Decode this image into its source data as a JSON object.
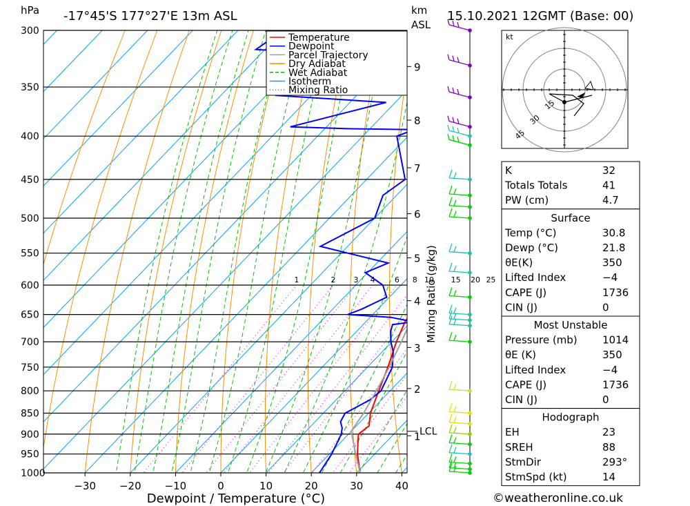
{
  "header": {
    "hpa_unit": "hPa",
    "location": "-17°45'S  177°27'E  13m  ASL",
    "km_unit": "km",
    "asl_unit": "ASL",
    "datetime": "15.10.2021  12GMT  (Base: 00)"
  },
  "axes": {
    "xlabel": "Dewpoint / Temperature (°C)",
    "x_ticks": [
      -30,
      -20,
      -10,
      0,
      10,
      20,
      30,
      40
    ],
    "x_tick_labels": [
      "−30",
      "−20",
      "−10",
      "0",
      "10",
      "20",
      "30",
      "40"
    ],
    "xlim": [
      -40,
      40
    ],
    "p_ticks": [
      300,
      350,
      400,
      450,
      500,
      550,
      600,
      650,
      700,
      750,
      800,
      850,
      900,
      950,
      1000
    ],
    "ylim_hpa": [
      300,
      1000
    ],
    "km_ticks": [
      {
        "label": "9",
        "p": 331
      },
      {
        "label": "8",
        "p": 383
      },
      {
        "label": "7",
        "p": 436
      },
      {
        "label": "6",
        "p": 494
      },
      {
        "label": "5",
        "p": 557
      },
      {
        "label": "4",
        "p": 626
      },
      {
        "label": "3",
        "p": 711
      },
      {
        "label": "2",
        "p": 795
      },
      {
        "label": "1",
        "p": 904
      }
    ],
    "lcl_label": "LCL",
    "lcl_p": 893,
    "mixing_ratio_axis_label": "Mixing Ratio (g/kg)"
  },
  "legend": [
    {
      "name": "Temperature",
      "color": "#ff0000",
      "style": "solid"
    },
    {
      "name": "Dewpoint",
      "color": "#0000ff",
      "style": "solid"
    },
    {
      "name": "Parcel Trajectory",
      "color": "#a0a0a0",
      "style": "solid"
    },
    {
      "name": "Dry Adiabat",
      "color": "#ff8c00",
      "style": "solid"
    },
    {
      "name": "Wet Adiabat",
      "color": "#00c000",
      "style": "dashed"
    },
    {
      "name": "Isotherm",
      "color": "#00a0ff",
      "style": "solid"
    },
    {
      "name": "Mixing Ratio",
      "color": "#ff00ff",
      "style": "dotted"
    }
  ],
  "chart_data": {
    "type": "line",
    "subtype": "skew-T log-p sounding",
    "x_unit": "°C",
    "y_unit": "hPa",
    "ylog": true,
    "series": [
      {
        "name": "Temperature",
        "color": "#ff0000",
        "points": [
          [
            1000,
            30.8
          ],
          [
            975,
            28.5
          ],
          [
            950,
            26.2
          ],
          [
            925,
            24.2
          ],
          [
            900,
            22.2
          ],
          [
            880,
            22.8
          ],
          [
            850,
            20.4
          ],
          [
            800,
            17.5
          ],
          [
            750,
            14.5
          ],
          [
            700,
            11.0
          ],
          [
            660,
            8.5
          ],
          [
            650,
            8.6
          ],
          [
            600,
            5.0
          ],
          [
            550,
            0.5
          ],
          [
            500,
            -5.0
          ],
          [
            450,
            -10.5
          ],
          [
            400,
            -17.2
          ],
          [
            390,
            -17.0
          ],
          [
            350,
            -26.0
          ],
          [
            330,
            -30.0
          ],
          [
            300,
            -37.0
          ]
        ]
      },
      {
        "name": "Dewpoint",
        "color": "#0000ff",
        "points": [
          [
            1000,
            21.8
          ],
          [
            950,
            20.5
          ],
          [
            900,
            18.4
          ],
          [
            885,
            17.3
          ],
          [
            870,
            15.6
          ],
          [
            850,
            14.8
          ],
          [
            820,
            17.5
          ],
          [
            800,
            18.0
          ],
          [
            750,
            15.5
          ],
          [
            720,
            12.5
          ],
          [
            700,
            9.8
          ],
          [
            680,
            7.5
          ],
          [
            668,
            6.5
          ],
          [
            663,
            10.5
          ],
          [
            655,
            4.6
          ],
          [
            650,
            -5.5
          ],
          [
            640,
            -3.5
          ],
          [
            620,
            -0.6
          ],
          [
            600,
            -4.0
          ],
          [
            580,
            -10.5
          ],
          [
            565,
            -7.5
          ],
          [
            540,
            -26.0
          ],
          [
            500,
            -20.0
          ],
          [
            470,
            -23.0
          ],
          [
            450,
            -21.5
          ],
          [
            400,
            -32.5
          ],
          [
            393,
            -30.0
          ],
          [
            392,
            -45.0
          ],
          [
            390,
            -58.0
          ],
          [
            365,
            -42.0
          ],
          [
            358,
            -68.0
          ],
          [
            330,
            -52.0
          ],
          [
            322,
            -54.0
          ],
          [
            316,
            -82.0
          ],
          [
            300,
            -80.0
          ]
        ]
      },
      {
        "name": "Parcel Trajectory",
        "color": "#a0a0a0",
        "points": [
          [
            1000,
            30.8
          ],
          [
            950,
            25.8
          ],
          [
            893,
            20.0
          ],
          [
            850,
            18.9
          ],
          [
            800,
            17.0
          ],
          [
            750,
            14.8
          ],
          [
            700,
            12.1
          ],
          [
            650,
            9.1
          ],
          [
            600,
            5.8
          ],
          [
            550,
            1.8
          ],
          [
            500,
            -2.8
          ],
          [
            450,
            -8.2
          ],
          [
            400,
            -14.8
          ],
          [
            370,
            -19.5
          ]
        ]
      }
    ],
    "mixing_ratio_lines_gkg": [
      1,
      2,
      3,
      4,
      6,
      8,
      10,
      15,
      20,
      25
    ]
  },
  "winds": {
    "levels": [
      {
        "p": 1000,
        "color": "#00d000"
      },
      {
        "p": 990,
        "color": "#00d000"
      },
      {
        "p": 975,
        "color": "#00d000"
      },
      {
        "p": 950,
        "color": "#20c0c0"
      },
      {
        "p": 925,
        "color": "#00d000"
      },
      {
        "p": 900,
        "color": "#90d000"
      },
      {
        "p": 875,
        "color": "#e0e000"
      },
      {
        "p": 850,
        "color": "#e0e000"
      },
      {
        "p": 800,
        "color": "#c0e040"
      },
      {
        "p": 700,
        "color": "#00d000"
      },
      {
        "p": 670,
        "color": "#20c0a0"
      },
      {
        "p": 660,
        "color": "#20c0a0"
      },
      {
        "p": 650,
        "color": "#20c0a0"
      },
      {
        "p": 620,
        "color": "#00d000"
      },
      {
        "p": 580,
        "color": "#20c0a0"
      },
      {
        "p": 550,
        "color": "#20c0a0"
      },
      {
        "p": 500,
        "color": "#00d000"
      },
      {
        "p": 485,
        "color": "#00d000"
      },
      {
        "p": 470,
        "color": "#00d000"
      },
      {
        "p": 450,
        "color": "#20c0a0"
      },
      {
        "p": 410,
        "color": "#00d000"
      },
      {
        "p": 400,
        "color": "#20c0c0"
      },
      {
        "p": 390,
        "color": "#8000c0"
      },
      {
        "p": 360,
        "color": "#8000c0"
      },
      {
        "p": 330,
        "color": "#8000c0"
      },
      {
        "p": 300,
        "color": "#8000c0"
      }
    ]
  },
  "hodograph": {
    "unit": "kt",
    "ring_labels": [
      "15",
      "30",
      "45"
    ]
  },
  "indices": {
    "top": [
      {
        "label": "K",
        "value": "32"
      },
      {
        "label": "Totals Totals",
        "value": "41"
      },
      {
        "label": "PW (cm)",
        "value": "4.7"
      }
    ],
    "surface": {
      "title": "Surface",
      "rows": [
        {
          "label": "Temp (°C)",
          "value": "30.8"
        },
        {
          "label": "Dewp (°C)",
          "value": "21.8"
        },
        {
          "label": "θE(K)",
          "value": "350"
        },
        {
          "label": "Lifted Index",
          "value": "−4"
        },
        {
          "label": "CAPE (J)",
          "value": "1736"
        },
        {
          "label": "CIN (J)",
          "value": "0"
        }
      ]
    },
    "most_unstable": {
      "title": "Most Unstable",
      "rows": [
        {
          "label": "Pressure (mb)",
          "value": "1014"
        },
        {
          "label": "θE (K)",
          "value": "350"
        },
        {
          "label": "Lifted Index",
          "value": "−4"
        },
        {
          "label": "CAPE (J)",
          "value": "1736"
        },
        {
          "label": "CIN (J)",
          "value": "0"
        }
      ]
    },
    "hodograph_block": {
      "title": "Hodograph",
      "rows": [
        {
          "label": "EH",
          "value": "23"
        },
        {
          "label": "SREH",
          "value": "88"
        },
        {
          "label": "StmDir",
          "value": "293°"
        },
        {
          "label": "StmSpd (kt)",
          "value": "14"
        }
      ]
    }
  },
  "footer": {
    "copyright": "©weatheronline.co.uk"
  }
}
